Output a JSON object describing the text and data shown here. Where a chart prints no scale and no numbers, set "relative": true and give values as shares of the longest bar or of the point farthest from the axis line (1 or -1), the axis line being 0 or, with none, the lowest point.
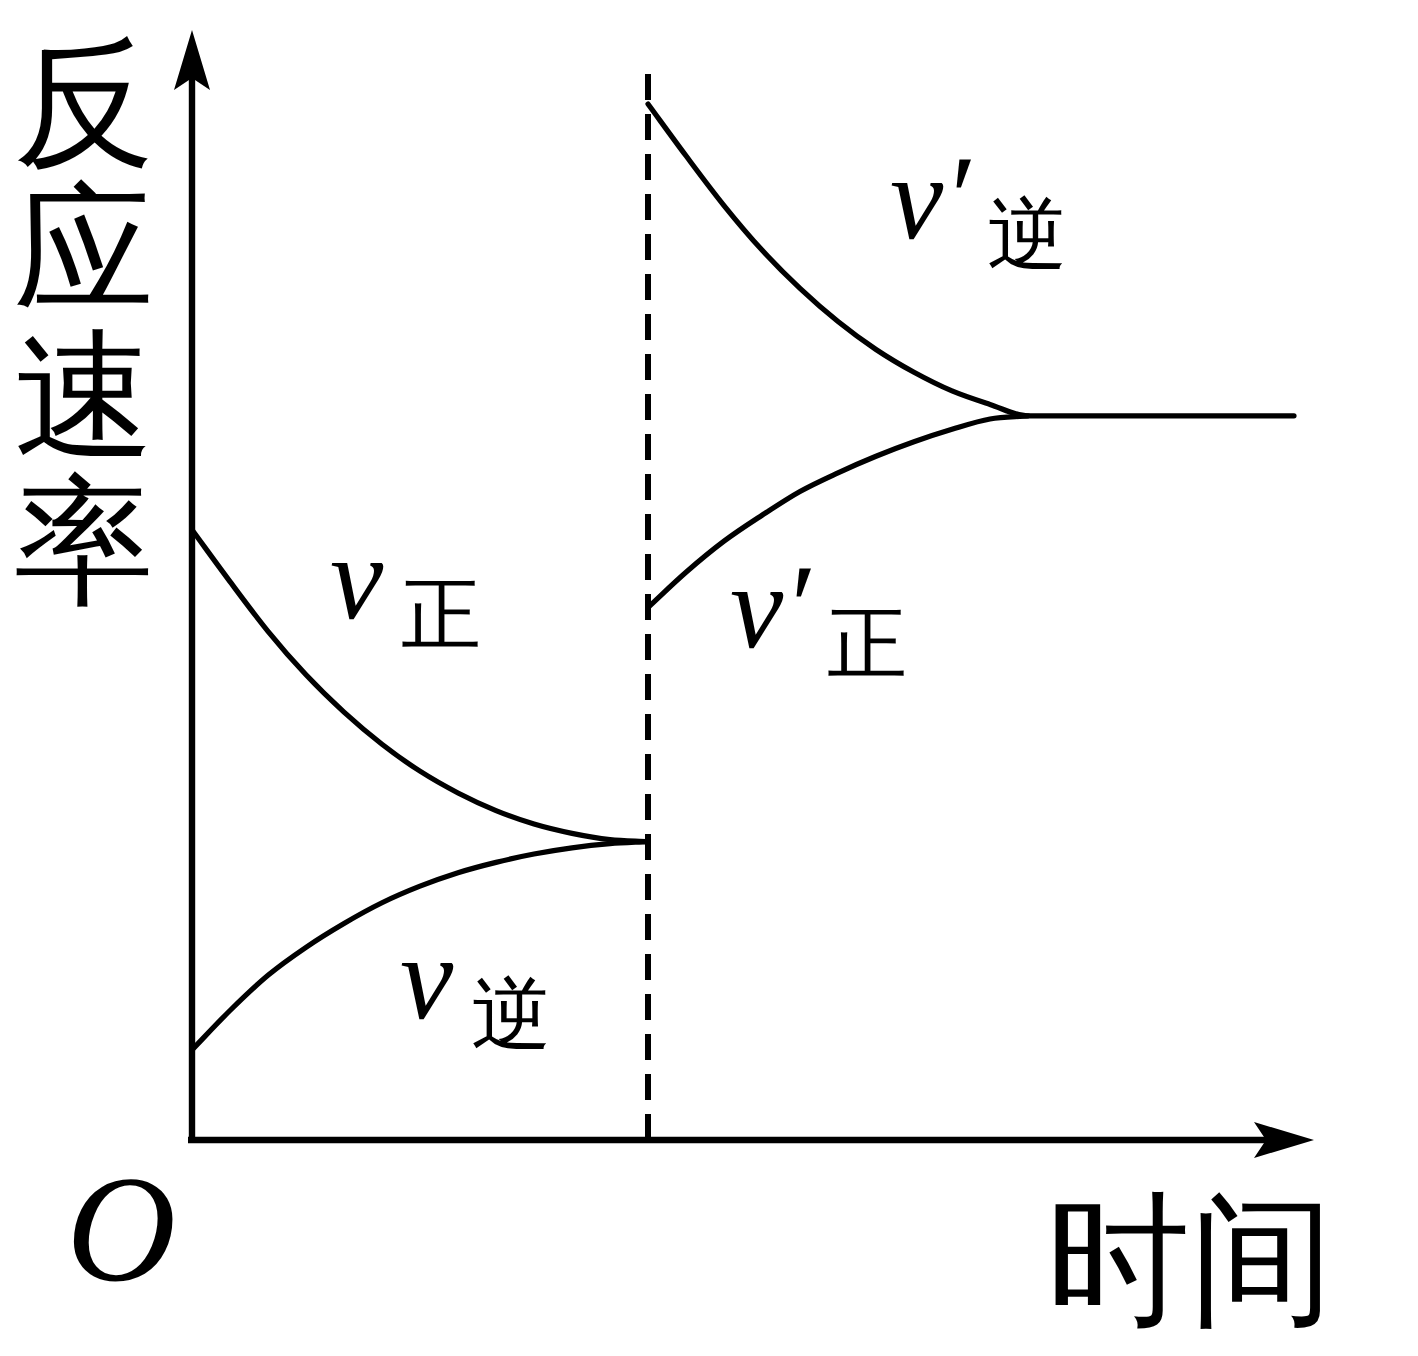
{
  "chart_data": {
    "type": "line",
    "relative": true,
    "xlabel": "时间",
    "ylabel": "反应速率",
    "line_style": "solid",
    "categories": [
      null,
      null,
      null,
      null,
      null,
      null,
      null,
      null,
      null,
      null,
      null,
      null,
      null,
      null,
      null,
      null,
      null,
      null,
      null,
      null,
      null,
      null,
      null,
      null,
      null,
      null,
      null,
      null,
      null,
      null
    ],
    "series": [
      {
        "name": "v$_{正}$",
        "color": "#000000",
        "values": [
          0.589,
          0.539,
          0.491,
          0.449,
          0.413,
          0.382,
          0.356,
          0.335,
          0.318,
          0.305,
          0.296,
          0.29,
          0.288,
          null,
          null,
          null,
          null,
          null,
          null,
          null,
          null,
          null,
          null,
          null,
          null,
          null,
          null,
          null,
          null,
          null
        ]
      },
      {
        "name": "v$_{逆}$",
        "color": "#000000",
        "values": [
          0.087,
          0.125,
          0.159,
          0.186,
          0.209,
          0.229,
          0.245,
          0.258,
          0.268,
          0.276,
          0.282,
          0.286,
          0.288,
          null,
          null,
          null,
          null,
          null,
          null,
          null,
          null,
          null,
          null,
          null,
          null,
          null,
          null,
          null,
          null,
          null
        ]
      },
      {
        "name": "v′$_{逆}$",
        "color": "#000000",
        "values": [
          null,
          null,
          null,
          null,
          null,
          null,
          null,
          null,
          null,
          null,
          null,
          null,
          1,
          0.95,
          0.902,
          0.859,
          0.822,
          0.79,
          0.763,
          0.741,
          0.723,
          0.71,
          0.699,
          0.699,
          0.699,
          0.699,
          0.699,
          0.699,
          0.699,
          0.699
        ]
      },
      {
        "name": "v′$_{正}$",
        "color": "#000000",
        "values": [
          null,
          null,
          null,
          null,
          null,
          null,
          null,
          null,
          null,
          null,
          null,
          null,
          0.514,
          0.548,
          0.578,
          0.603,
          0.626,
          0.644,
          0.66,
          0.674,
          0.686,
          0.696,
          0.699,
          null,
          null,
          null,
          null,
          null,
          null,
          null
        ]
      }
    ],
    "annotations": [
      "O"
    ]
  }
}
